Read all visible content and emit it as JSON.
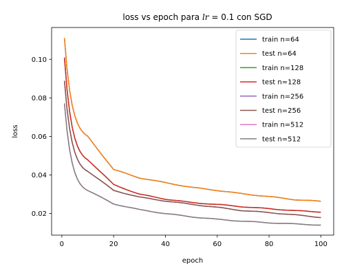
{
  "chart_data": {
    "type": "line",
    "title_prefix": "loss vs epoch para ",
    "title_math_var": "lr",
    "title_suffix": " = 0.1 con SGD",
    "xlabel": "epoch",
    "ylabel": "loss",
    "xlim": [
      -3.95,
      104.95
    ],
    "ylim": [
      0.0088,
      0.1165
    ],
    "xticks": [
      0,
      20,
      40,
      60,
      80,
      100
    ],
    "yticks": [
      0.02,
      0.04,
      0.06,
      0.08,
      0.1
    ],
    "ytick_labels": [
      "0.02",
      "0.04",
      "0.06",
      "0.08",
      "0.10"
    ],
    "legend_position": "top-right",
    "grid": false,
    "series": [
      {
        "name": "train n=64",
        "color": "#1f77b4",
        "start": 0.1112,
        "end": 0.0263,
        "mid": [
          [
            10,
            0.06
          ],
          [
            20,
            0.0428
          ],
          [
            30,
            0.0385
          ],
          [
            40,
            0.036
          ],
          [
            50,
            0.0336
          ],
          [
            60,
            0.032
          ],
          [
            70,
            0.0302
          ],
          [
            80,
            0.0288
          ],
          [
            90,
            0.0272
          ]
        ]
      },
      {
        "name": "test n=64",
        "color": "#ff7f0e",
        "start": 0.1112,
        "end": 0.0263,
        "mid": [
          [
            10,
            0.06
          ],
          [
            20,
            0.0428
          ],
          [
            30,
            0.0385
          ],
          [
            40,
            0.036
          ],
          [
            50,
            0.0336
          ],
          [
            60,
            0.032
          ],
          [
            70,
            0.0302
          ],
          [
            80,
            0.0288
          ],
          [
            90,
            0.0272
          ]
        ]
      },
      {
        "name": "train n=128",
        "color": "#2ca02c",
        "start": 0.1008,
        "end": 0.0208,
        "mid": [
          [
            10,
            0.048
          ],
          [
            20,
            0.035
          ],
          [
            30,
            0.03
          ],
          [
            40,
            0.0275
          ],
          [
            50,
            0.0257
          ],
          [
            60,
            0.0247
          ],
          [
            70,
            0.0235
          ],
          [
            80,
            0.0225
          ],
          [
            90,
            0.0215
          ]
        ]
      },
      {
        "name": "test n=128",
        "color": "#d62728",
        "start": 0.1008,
        "end": 0.0208,
        "mid": [
          [
            10,
            0.048
          ],
          [
            20,
            0.035
          ],
          [
            30,
            0.03
          ],
          [
            40,
            0.0275
          ],
          [
            50,
            0.0257
          ],
          [
            60,
            0.0247
          ],
          [
            70,
            0.0235
          ],
          [
            80,
            0.0225
          ],
          [
            90,
            0.0215
          ]
        ]
      },
      {
        "name": "train n=256",
        "color": "#9467bd",
        "start": 0.0887,
        "end": 0.018,
        "mid": [
          [
            10,
            0.042
          ],
          [
            20,
            0.032
          ],
          [
            30,
            0.0285
          ],
          [
            40,
            0.0265
          ],
          [
            50,
            0.0248
          ],
          [
            60,
            0.0232
          ],
          [
            70,
            0.0215
          ],
          [
            80,
            0.0205
          ],
          [
            90,
            0.0193
          ]
        ]
      },
      {
        "name": "test n=256",
        "color": "#8c564b",
        "start": 0.0887,
        "end": 0.018,
        "mid": [
          [
            10,
            0.042
          ],
          [
            20,
            0.032
          ],
          [
            30,
            0.0285
          ],
          [
            40,
            0.0265
          ],
          [
            50,
            0.0248
          ],
          [
            60,
            0.0232
          ],
          [
            70,
            0.0215
          ],
          [
            80,
            0.0205
          ],
          [
            90,
            0.0193
          ]
        ]
      },
      {
        "name": "train n=512",
        "color": "#e377c2",
        "start": 0.077,
        "end": 0.014,
        "mid": [
          [
            10,
            0.032
          ],
          [
            20,
            0.025
          ],
          [
            30,
            0.022
          ],
          [
            40,
            0.02
          ],
          [
            50,
            0.0183
          ],
          [
            60,
            0.017
          ],
          [
            70,
            0.016
          ],
          [
            80,
            0.0152
          ],
          [
            90,
            0.0146
          ]
        ]
      },
      {
        "name": "test n=512",
        "color": "#7f7f7f",
        "start": 0.077,
        "end": 0.014,
        "mid": [
          [
            10,
            0.032
          ],
          [
            20,
            0.025
          ],
          [
            30,
            0.022
          ],
          [
            40,
            0.02
          ],
          [
            50,
            0.0183
          ],
          [
            60,
            0.017
          ],
          [
            70,
            0.016
          ],
          [
            80,
            0.0152
          ],
          [
            90,
            0.0146
          ]
        ]
      }
    ]
  }
}
